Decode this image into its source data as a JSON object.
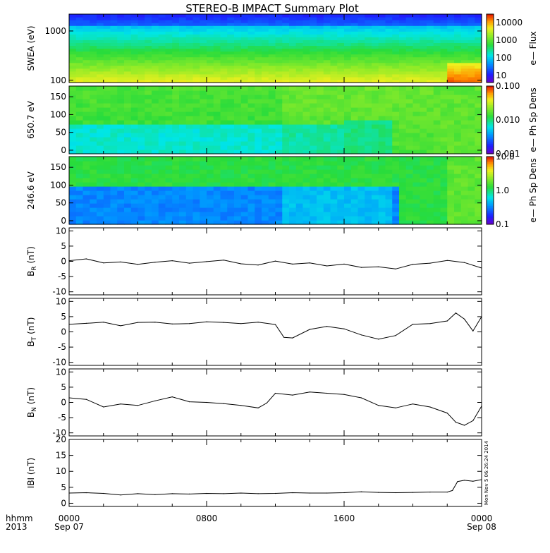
{
  "title": "STEREO-B IMPACT Summary Plot",
  "footer": {
    "left_top": "hhmm",
    "left_bottom": "2013",
    "x_ticks_top": [
      "0000",
      "0800",
      "1600",
      "0000"
    ],
    "x_ticks_bottom": [
      "Sep 07",
      "",
      "",
      "Sep 08"
    ],
    "stamp": "Mon Nov  5 06:26:24 2014"
  },
  "chart_data": [
    {
      "type": "heatmap",
      "id": "swea",
      "ylabel": "SWEA (eV)",
      "ylog": true,
      "ylim": [
        90,
        2200
      ],
      "yticks": [
        {
          "v": 100,
          "label": "100"
        },
        {
          "v": 1000,
          "label": "1000"
        }
      ],
      "colorbar": {
        "label": "e— Flux",
        "log": true,
        "range": [
          4,
          30000
        ],
        "ticks": [
          {
            "v": 10,
            "label": "10"
          },
          {
            "v": 100,
            "label": "100"
          },
          {
            "v": 1000,
            "label": "1000"
          },
          {
            "v": 10000,
            "label": "10000"
          }
        ]
      }
    },
    {
      "type": "heatmap",
      "id": "pad650",
      "ylabel": "650.7 eV",
      "ylim": [
        -10,
        180
      ],
      "yticks": [
        {
          "v": 0,
          "label": "0"
        },
        {
          "v": 50,
          "label": "50"
        },
        {
          "v": 100,
          "label": "100"
        },
        {
          "v": 150,
          "label": "150"
        }
      ],
      "colorbar": {
        "label": "e— Ph Sp Dens",
        "log": true,
        "range": [
          0.001,
          0.1
        ],
        "ticks": [
          {
            "v": 0.001,
            "label": "0.001"
          },
          {
            "v": 0.01,
            "label": "0.010"
          },
          {
            "v": 0.1,
            "label": "0.100"
          }
        ]
      }
    },
    {
      "type": "heatmap",
      "id": "pad246",
      "ylabel": "246.6 eV",
      "ylim": [
        -10,
        180
      ],
      "yticks": [
        {
          "v": 0,
          "label": "0"
        },
        {
          "v": 50,
          "label": "50"
        },
        {
          "v": 100,
          "label": "100"
        },
        {
          "v": 150,
          "label": "150"
        }
      ],
      "colorbar": {
        "label": "e— Ph Sp Dens",
        "log": true,
        "range": [
          0.1,
          10
        ],
        "ticks": [
          {
            "v": 0.1,
            "label": "0.1"
          },
          {
            "v": 1,
            "label": "1.0"
          },
          {
            "v": 10,
            "label": "10.0"
          }
        ]
      }
    },
    {
      "type": "line",
      "id": "br",
      "ylabel_main": "B",
      "ylabel_sub": "R",
      "ylabel_unit": " (nT)",
      "ylim": [
        -11,
        11
      ],
      "yticks": [
        {
          "v": -10,
          "label": "-10"
        },
        {
          "v": -5,
          "label": "-5"
        },
        {
          "v": 0,
          "label": "0"
        },
        {
          "v": 5,
          "label": "5"
        },
        {
          "v": 10,
          "label": "10"
        }
      ],
      "x_hours": [
        0,
        1,
        2,
        3,
        4,
        5,
        6,
        7,
        8,
        9,
        10,
        11,
        12,
        13,
        14,
        15,
        16,
        17,
        18,
        19,
        20,
        21,
        22,
        23,
        24
      ],
      "values": [
        0.2,
        0.8,
        -0.5,
        -0.2,
        -1.0,
        -0.3,
        0.2,
        -0.6,
        -0.1,
        0.4,
        -0.8,
        -1.2,
        0.1,
        -0.9,
        -0.5,
        -1.5,
        -0.9,
        -2.0,
        -1.8,
        -2.5,
        -1.0,
        -0.6,
        0.3,
        -0.4,
        -2.2
      ]
    },
    {
      "type": "line",
      "id": "bt",
      "ylabel_main": "B",
      "ylabel_sub": "T",
      "ylabel_unit": " (nT)",
      "ylim": [
        -11,
        11
      ],
      "yticks": [
        {
          "v": -10,
          "label": "-10"
        },
        {
          "v": -5,
          "label": "-5"
        },
        {
          "v": 0,
          "label": "0"
        },
        {
          "v": 5,
          "label": "5"
        },
        {
          "v": 10,
          "label": "10"
        }
      ],
      "x_hours": [
        0,
        1,
        2,
        3,
        4,
        5,
        6,
        7,
        8,
        9,
        10,
        11,
        12,
        12.5,
        13,
        14,
        15,
        16,
        17,
        18,
        19,
        20,
        21,
        22,
        22.5,
        23,
        23.5,
        24
      ],
      "values": [
        2.5,
        2.8,
        3.2,
        2.0,
        3.1,
        3.2,
        2.6,
        2.7,
        3.3,
        3.1,
        2.7,
        3.2,
        2.4,
        -1.8,
        -2.0,
        0.8,
        1.8,
        1.0,
        -1.0,
        -2.4,
        -1.2,
        2.5,
        2.7,
        3.6,
        6.2,
        4.2,
        0.3,
        5.0
      ]
    },
    {
      "type": "line",
      "id": "bn",
      "ylabel_main": "B",
      "ylabel_sub": "N",
      "ylabel_unit": " (nT)",
      "ylim": [
        -11,
        11
      ],
      "yticks": [
        {
          "v": -10,
          "label": "-10"
        },
        {
          "v": -5,
          "label": "-5"
        },
        {
          "v": 0,
          "label": "0"
        },
        {
          "v": 5,
          "label": "5"
        },
        {
          "v": 10,
          "label": "10"
        }
      ],
      "x_hours": [
        0,
        1,
        2,
        3,
        4,
        5,
        6,
        7,
        8,
        9,
        10,
        11,
        11.5,
        12,
        13,
        14,
        15,
        16,
        17,
        18,
        19,
        20,
        21,
        22,
        22.5,
        23,
        23.5,
        24
      ],
      "values": [
        1.5,
        1.0,
        -1.5,
        -0.5,
        -1.0,
        0.5,
        1.8,
        0.2,
        0.0,
        -0.4,
        -1.0,
        -1.8,
        -0.2,
        3.0,
        2.4,
        3.4,
        3.0,
        2.6,
        1.5,
        -1.0,
        -1.8,
        -0.5,
        -1.5,
        -3.5,
        -6.5,
        -7.5,
        -6.0,
        -1.2
      ]
    },
    {
      "type": "line",
      "id": "btot",
      "ylabel_main": "IBI",
      "ylabel_sub": "",
      "ylabel_unit": " (nT)",
      "ylim": [
        -1,
        20
      ],
      "yticks": [
        {
          "v": 0,
          "label": "0"
        },
        {
          "v": 5,
          "label": "5"
        },
        {
          "v": 10,
          "label": "10"
        },
        {
          "v": 15,
          "label": "15"
        },
        {
          "v": 20,
          "label": "20"
        }
      ],
      "x_hours": [
        0,
        1,
        2,
        3,
        4,
        5,
        6,
        7,
        8,
        9,
        10,
        11,
        12,
        13,
        14,
        15,
        16,
        17,
        18,
        19,
        20,
        21,
        22,
        22.3,
        22.6,
        23,
        23.5,
        24
      ],
      "values": [
        3.2,
        3.3,
        3.1,
        2.6,
        3.0,
        2.7,
        3.0,
        2.9,
        3.1,
        3.0,
        3.2,
        3.0,
        3.1,
        3.3,
        3.2,
        3.2,
        3.3,
        3.6,
        3.4,
        3.3,
        3.4,
        3.5,
        3.5,
        4.0,
        6.8,
        7.2,
        6.9,
        7.4
      ]
    }
  ]
}
